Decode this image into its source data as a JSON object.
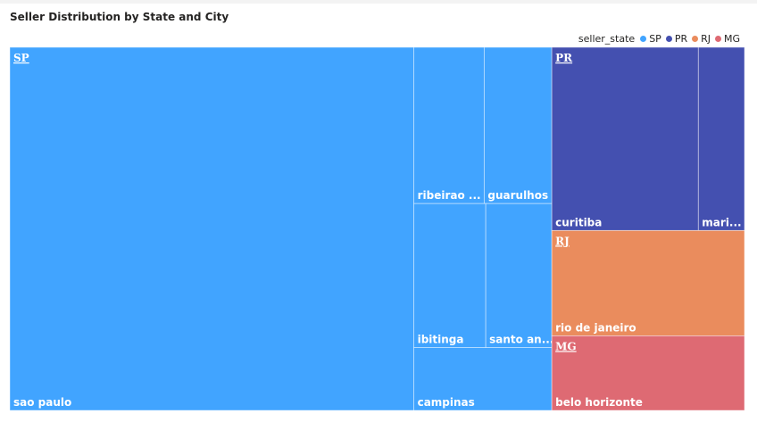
{
  "colors": {
    "SP": "#41a4ff",
    "PR": "#4450b0",
    "RJ": "#ea8c5d",
    "MG": "#de6a73"
  },
  "chart_data": {
    "type": "treemap",
    "title": "Seller Distribution by State and City",
    "legend": {
      "title": "seller_state",
      "placement": "top-right",
      "entries": [
        "SP",
        "PR",
        "RJ",
        "MG"
      ]
    },
    "groups": [
      {
        "name": "SP",
        "label": "SP",
        "cities": [
          {
            "name": "sao paulo",
            "label": "sao paulo",
            "value": 694
          },
          {
            "name": "ribeirao preto",
            "label": "ribeirao ...",
            "value": 52
          },
          {
            "name": "guarulhos",
            "label": "guarulhos",
            "value": 50
          },
          {
            "name": "ibitinga",
            "label": "ibitinga",
            "value": 49
          },
          {
            "name": "santo andre",
            "label": "santo an...",
            "value": 45
          },
          {
            "name": "campinas",
            "label": "campinas",
            "value": 41
          }
        ]
      },
      {
        "name": "PR",
        "label": "PR",
        "cities": [
          {
            "name": "curitiba",
            "label": "curitiba",
            "value": 127
          },
          {
            "name": "maringa",
            "label": "mari...",
            "value": 40
          }
        ]
      },
      {
        "name": "RJ",
        "label": "RJ",
        "cities": [
          {
            "name": "rio de janeiro",
            "label": "rio de janeiro",
            "value": 96
          }
        ]
      },
      {
        "name": "MG",
        "label": "MG",
        "cities": [
          {
            "name": "belo horizonte",
            "label": "belo horizonte",
            "value": 68
          }
        ]
      }
    ]
  }
}
